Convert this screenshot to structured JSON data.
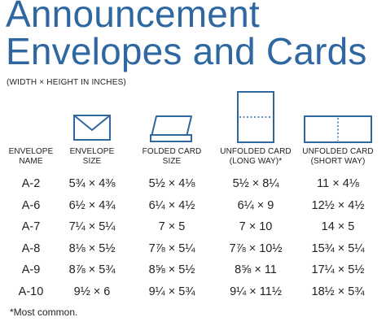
{
  "title": {
    "line1": "Announcement",
    "line2": "Envelopes and Cards"
  },
  "subtitle": "(WIDTH × HEIGHT IN INCHES)",
  "icons": {
    "envelope": "envelope-icon",
    "folded_card": "folded-card-icon",
    "unfolded_long": "unfolded-card-long-way-icon",
    "unfolded_short": "unfolded-card-short-way-icon",
    "stroke_color": "#2f68a0"
  },
  "table": {
    "headers": [
      {
        "line1": "ENVELOPE",
        "line2": "NAME"
      },
      {
        "line1": "ENVELOPE",
        "line2": "SIZE"
      },
      {
        "line1": "FOLDED CARD",
        "line2": "SIZE"
      },
      {
        "line1": "UNFOLDED CARD",
        "line2": "(LONG WAY)*"
      },
      {
        "line1": "UNFOLDED CARD",
        "line2": "(SHORT WAY)"
      }
    ],
    "rows": [
      [
        "A-2",
        "5¾ × 4⅜",
        "5½ × 4⅛",
        "5½ × 8¼",
        "11 × 4⅛"
      ],
      [
        "A-6",
        "6½ × 4¾",
        "6¼ × 4½",
        "6¼ × 9",
        "12½ × 4½"
      ],
      [
        "A-7",
        "7¼ × 5¼",
        "7 × 5",
        "7 × 10",
        "14 × 5"
      ],
      [
        "A-8",
        "8⅛ × 5½",
        "7⅞ × 5¼",
        "7⅞ × 10½",
        "15¾ × 5¼"
      ],
      [
        "A-9",
        "8⅞ × 5¾",
        "8⅝ × 5½",
        "8⅝ × 11",
        "17¼ × 5½"
      ],
      [
        "A-10",
        "9½ × 6",
        "9¼ × 5¾",
        "9¼ × 11½",
        "18½ × 5¾"
      ]
    ]
  },
  "footnote": "*Most common."
}
